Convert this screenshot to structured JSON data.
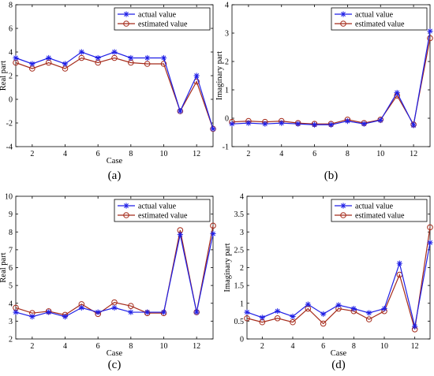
{
  "figure": {
    "colors": {
      "actual": "#1f1fe6",
      "estimated": "#a52a1a",
      "axis": "#000000"
    },
    "markers": {
      "actual": "asterisk",
      "estimated": "circle"
    }
  },
  "chart_data": [
    {
      "type": "line",
      "panel_label": "(a)",
      "xlabel": "Case",
      "ylabel": "Real part",
      "xlim": [
        1,
        13
      ],
      "ylim": [
        -4,
        8
      ],
      "xticks": [
        2,
        4,
        6,
        8,
        10,
        12
      ],
      "yticks": [
        -4,
        -2,
        0,
        2,
        4,
        6,
        8
      ],
      "legend": "top-right",
      "grid": false,
      "x": [
        1,
        2,
        3,
        4,
        5,
        6,
        7,
        8,
        9,
        10,
        11,
        12,
        13
      ],
      "series": [
        {
          "name": "actual value",
          "values": [
            3.5,
            3.0,
            3.5,
            3.0,
            4.0,
            3.5,
            4.0,
            3.5,
            3.5,
            3.5,
            -1.0,
            2.0,
            -2.5
          ]
        },
        {
          "name": "estimated value",
          "values": [
            3.1,
            2.6,
            3.1,
            2.6,
            3.5,
            3.1,
            3.5,
            3.1,
            3.0,
            3.0,
            -1.0,
            1.5,
            -2.5
          ]
        }
      ]
    },
    {
      "type": "line",
      "panel_label": "(b)",
      "xlabel": "",
      "ylabel": "Imaginary part",
      "xlim": [
        1,
        13
      ],
      "ylim": [
        -1,
        4
      ],
      "xticks": [
        2,
        4,
        6,
        8,
        10,
        12
      ],
      "yticks": [
        -1,
        0,
        1,
        2,
        3,
        4
      ],
      "legend": "top-right",
      "grid": false,
      "x": [
        1,
        2,
        3,
        4,
        5,
        6,
        7,
        8,
        9,
        10,
        11,
        12,
        13
      ],
      "series": [
        {
          "name": "actual value",
          "values": [
            -0.2,
            -0.17,
            -0.2,
            -0.17,
            -0.2,
            -0.23,
            -0.23,
            -0.1,
            -0.2,
            -0.07,
            0.9,
            -0.25,
            3.07
          ]
        },
        {
          "name": "estimated value",
          "values": [
            -0.13,
            -0.1,
            -0.13,
            -0.1,
            -0.17,
            -0.2,
            -0.2,
            -0.05,
            -0.17,
            -0.05,
            0.8,
            -0.22,
            2.82
          ]
        }
      ]
    },
    {
      "type": "line",
      "panel_label": "(c)",
      "xlabel": "Case",
      "ylabel": "Real part",
      "xlim": [
        1,
        13
      ],
      "ylim": [
        2,
        10
      ],
      "xticks": [
        2,
        4,
        6,
        8,
        10,
        12
      ],
      "yticks": [
        2,
        3,
        4,
        5,
        6,
        7,
        8,
        9,
        10
      ],
      "legend": "top-right",
      "grid": false,
      "x": [
        1,
        2,
        3,
        4,
        5,
        6,
        7,
        8,
        9,
        10,
        11,
        12,
        13
      ],
      "series": [
        {
          "name": "actual value",
          "values": [
            3.5,
            3.25,
            3.5,
            3.25,
            3.75,
            3.5,
            3.75,
            3.5,
            3.5,
            3.5,
            7.85,
            3.5,
            7.9
          ]
        },
        {
          "name": "estimated value",
          "values": [
            3.75,
            3.45,
            3.55,
            3.35,
            3.95,
            3.4,
            4.05,
            3.85,
            3.45,
            3.45,
            8.1,
            3.5,
            8.35
          ]
        }
      ]
    },
    {
      "type": "line",
      "panel_label": "(d)",
      "xlabel": "Case",
      "ylabel": "Imaginary part",
      "xlim": [
        1,
        13
      ],
      "ylim": [
        0,
        4
      ],
      "xticks": [
        2,
        4,
        6,
        8,
        10,
        12
      ],
      "yticks": [
        0,
        0.5,
        1,
        1.5,
        2,
        2.5,
        3,
        3.5,
        4
      ],
      "ytick_labels": [
        "0",
        "0.5",
        "1",
        "1.5",
        "2",
        "2.5",
        "3",
        "3.5",
        "4"
      ],
      "legend": "top-right",
      "grid": false,
      "x": [
        1,
        2,
        3,
        4,
        5,
        6,
        7,
        8,
        9,
        10,
        11,
        12,
        13
      ],
      "series": [
        {
          "name": "actual value",
          "values": [
            0.75,
            0.6,
            0.78,
            0.63,
            0.97,
            0.7,
            0.95,
            0.85,
            0.73,
            0.85,
            2.12,
            0.35,
            2.7
          ]
        },
        {
          "name": "estimated value",
          "values": [
            0.58,
            0.47,
            0.58,
            0.47,
            0.85,
            0.43,
            0.85,
            0.78,
            0.55,
            0.78,
            1.8,
            0.27,
            3.13
          ]
        }
      ]
    }
  ]
}
